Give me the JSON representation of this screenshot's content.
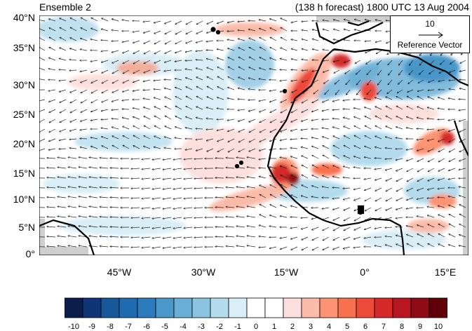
{
  "title": {
    "left": "Ensemble 2",
    "right": "(138 h forecast) 1800 UTC 13 Aug 2004"
  },
  "reference": {
    "value": "10",
    "label": "Reference Vector"
  },
  "axes": {
    "y_ticks": [
      "40°N",
      "35°N",
      "30°N",
      "25°N",
      "20°N",
      "15°N",
      "10°N",
      "5°N",
      "0°"
    ],
    "x_ticks": [
      "45°W",
      "30°W",
      "15°W",
      "0°",
      "15°E"
    ],
    "lon_range": [
      -58,
      19
    ],
    "lat_range": [
      0,
      40
    ]
  },
  "colorbar": {
    "labels": [
      "-10",
      "-9",
      "-8",
      "-7",
      "-6",
      "-5",
      "-4",
      "-3",
      "-2",
      "-1",
      "0",
      "1",
      "2",
      "3",
      "4",
      "5",
      "6",
      "7",
      "8",
      "9",
      "10"
    ],
    "colors": [
      "#0b1d4d",
      "#0f3576",
      "#18579a",
      "#1f6ab0",
      "#2b7bbd",
      "#4a97c9",
      "#6aafd6",
      "#8cc4e0",
      "#b4dced",
      "#d9eef7",
      "#ffffff",
      "#ffffff",
      "#fde0dd",
      "#fcbba9",
      "#fc9373",
      "#f8714f",
      "#ee4a39",
      "#d42a2a",
      "#b8171f",
      "#8f0c16",
      "#600008"
    ]
  }
}
